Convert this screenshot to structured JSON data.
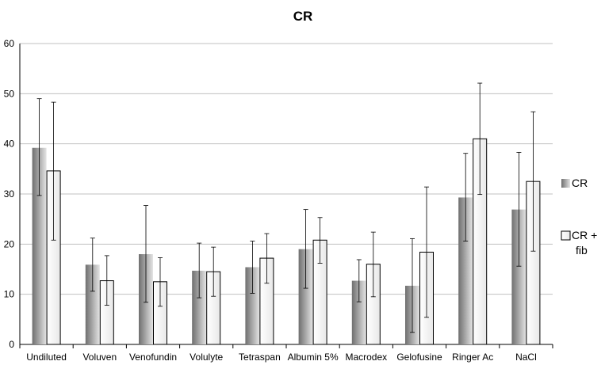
{
  "chart_data": {
    "type": "bar",
    "title": "CR",
    "xlabel": "",
    "ylabel": "",
    "ylim": [
      0,
      60
    ],
    "yticks": [
      0,
      10,
      20,
      30,
      40,
      50,
      60
    ],
    "grid": true,
    "legend_position": "right",
    "categories": [
      "Undiluted",
      "Voluven",
      "Venofundin",
      "Volulyte",
      "Tetraspan",
      "Albumin 5%",
      "Macrodex",
      "Gelofusine",
      "Ringer Ac",
      "NaCl"
    ],
    "series": [
      {
        "name": "CR",
        "style": "gradient-gray",
        "values": [
          39.2,
          15.9,
          18.0,
          14.7,
          15.4,
          19.0,
          12.7,
          11.7,
          29.3,
          26.9
        ],
        "error_high": [
          49.0,
          21.2,
          27.7,
          20.2,
          20.6,
          26.9,
          16.9,
          21.1,
          38.1,
          38.3
        ],
        "error_low": [
          29.7,
          10.6,
          8.4,
          9.3,
          10.2,
          11.2,
          8.5,
          2.4,
          20.6,
          15.6
        ]
      },
      {
        "name": "CR + fib",
        "style": "gradient-white-outline",
        "values": [
          34.6,
          12.7,
          12.5,
          14.5,
          17.2,
          20.8,
          16.0,
          18.4,
          41.0,
          32.5
        ],
        "error_high": [
          48.3,
          17.7,
          17.3,
          19.4,
          22.1,
          25.3,
          22.4,
          31.4,
          52.1,
          46.4
        ],
        "error_low": [
          20.8,
          7.8,
          7.6,
          9.6,
          12.2,
          16.2,
          9.5,
          5.4,
          29.9,
          18.6
        ]
      }
    ],
    "legend": [
      {
        "label": "CR"
      },
      {
        "label": "CR +\nfib"
      }
    ]
  },
  "colors": {
    "grid": "#c0c0c0",
    "axis": "#000000",
    "bar1_dark": "#6f6f6f",
    "bar1_light": "#e4e4e4",
    "bar2_outline": "#000000",
    "bar2_fill": "#f7f7f7",
    "error_bar": "#000000"
  }
}
